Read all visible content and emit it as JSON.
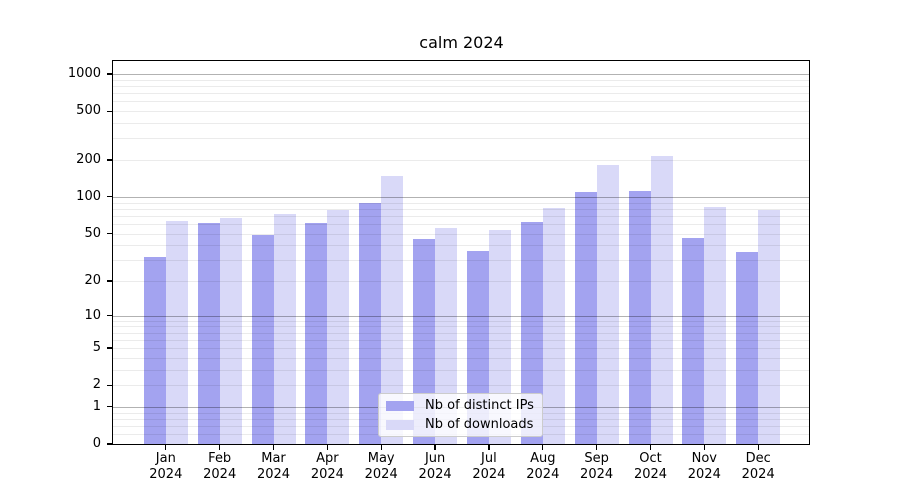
{
  "chart_data": {
    "type": "bar",
    "title": "calm 2024",
    "categories": [
      "Jan",
      "Feb",
      "Mar",
      "Apr",
      "May",
      "Jun",
      "Jul",
      "Aug",
      "Sep",
      "Oct",
      "Nov",
      "Dec"
    ],
    "x_year_label": "2024",
    "series": [
      {
        "name": "Nb of distinct IPs",
        "color": "#a3a3f0",
        "values": [
          32,
          61,
          49,
          61,
          89,
          45,
          36,
          62,
          109,
          112,
          46,
          35
        ]
      },
      {
        "name": "Nb of downloads",
        "color": "#d9d9f8",
        "values": [
          63,
          67,
          73,
          78,
          148,
          56,
          53,
          81,
          183,
          215,
          83,
          78
        ]
      }
    ],
    "yscale": "log1p",
    "ylim": [
      0,
      1277
    ],
    "y_ticks": [
      0,
      1,
      2,
      5,
      10,
      20,
      50,
      100,
      200,
      500,
      1000
    ],
    "major_gridlines": [
      1,
      10,
      100,
      1000
    ],
    "minor_gridlines": [
      0.2,
      0.4,
      0.6,
      0.8,
      2,
      3,
      4,
      5,
      6,
      7,
      8,
      9,
      20,
      30,
      40,
      50,
      60,
      70,
      80,
      90,
      200,
      300,
      400,
      500,
      600,
      700,
      800,
      900
    ],
    "grid": true,
    "legend_position": "lower center",
    "xlabel": "",
    "ylabel": ""
  },
  "colors": {
    "bar_distinct_ips": "#a3a3f0",
    "bar_downloads": "#d9d9f8",
    "major_grid": "rgba(0,0,0,0.30)",
    "minor_grid": "rgba(0,0,0,0.08)",
    "axis": "#000000",
    "background": "#ffffff"
  }
}
